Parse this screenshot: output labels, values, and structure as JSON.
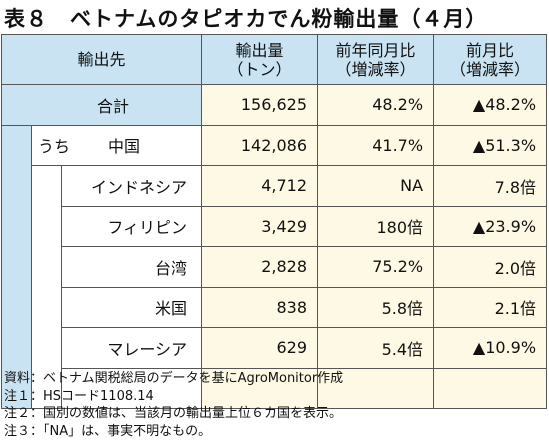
{
  "title": "表８　ベトナムのタピオカでん粉輸出量（４月）",
  "header": {
    "destination": "輸出先",
    "volume_line1": "輸出量",
    "volume_line2": "（トン）",
    "yoy_line1": "前年同月比",
    "yoy_line2": "（増減率）",
    "mom_line1": "前月比",
    "mom_line2": "（増減率）"
  },
  "total": {
    "label": "合計",
    "volume": "156,625",
    "yoy": "48.2%",
    "mom": "▲48.2%"
  },
  "sub_prefix": "うち",
  "rows": [
    {
      "label": "中国",
      "volume": "142,086",
      "yoy": "41.7%",
      "mom": "▲51.3%"
    },
    {
      "label": "インドネシア",
      "volume": "4,712",
      "yoy": "NA",
      "mom": "7.8倍"
    },
    {
      "label": "フィリピン",
      "volume": "3,429",
      "yoy": "180倍",
      "mom": "▲23.9%"
    },
    {
      "label": "台湾",
      "volume": "2,828",
      "yoy": "75.2%",
      "mom": "2.0倍"
    },
    {
      "label": "米国",
      "volume": "838",
      "yoy": "5.8倍",
      "mom": "2.1倍"
    },
    {
      "label": "マレーシア",
      "volume": "629",
      "yoy": "5.4倍",
      "mom": "▲10.9%"
    }
  ],
  "notes": [
    "資料：ベトナム関税総局のデータを基にAgroMonitor作成",
    "注１：HSコード1108.14",
    "注２：国別の数値は、当該月の輸出量上位６カ国を表示。",
    "注３：「NA」は、事実不明なもの。"
  ]
}
